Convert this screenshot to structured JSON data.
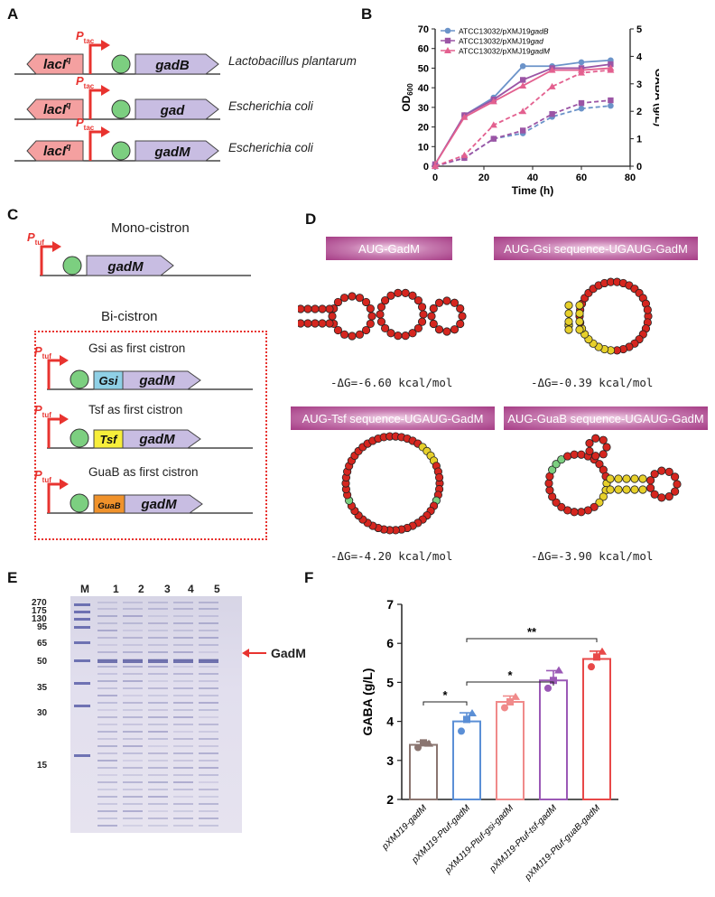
{
  "panels": {
    "A": "A",
    "B": "B",
    "C": "C",
    "D": "D",
    "E": "E",
    "F": "F"
  },
  "panelA": {
    "rows": [
      {
        "promoter": "P",
        "promoter_sub": "tac",
        "repressor": "lacI",
        "repressor_sup": "q",
        "gene": "gadB",
        "species": "Lactobacillus plantarum"
      },
      {
        "promoter": "P",
        "promoter_sub": "tac",
        "repressor": "lacI",
        "repressor_sup": "q",
        "gene": "gad",
        "species": "Escherichia coli"
      },
      {
        "promoter": "P",
        "promoter_sub": "tac",
        "repressor": "lacI",
        "repressor_sup": "q",
        "gene": "gadM",
        "species": "Escherichia coli"
      }
    ]
  },
  "panelC": {
    "mono_title": "Mono-cistron",
    "bi_title": "Bi-cistron",
    "promoter": "P",
    "promoter_sub": "tuf",
    "gene": "gadM",
    "cistrons": [
      {
        "caption": "Gsi as first cistron",
        "label": "Gsi",
        "color": "#8fd0e6"
      },
      {
        "caption": "Tsf as first cistron",
        "label": "Tsf",
        "color": "#f7ee3a"
      },
      {
        "caption": "GuaB as first cistron",
        "label": "GuaB",
        "color": "#f0922b"
      }
    ]
  },
  "panelD": {
    "structures": [
      {
        "title": "AUG-GadM",
        "energy": "-ΔG=-6.60 kcal/mol"
      },
      {
        "title": "AUG-Gsi sequence-UGAUG-GadM",
        "energy": "-ΔG=-0.39 kcal/mol"
      },
      {
        "title": "AUG-Tsf sequence-UGAUG-GadM",
        "energy": "-ΔG=-4.20 kcal/mol"
      },
      {
        "title": "AUG-GuaB sequence-UGAUG-GadM",
        "energy": "-ΔG=-3.90 kcal/mol"
      }
    ]
  },
  "panelE": {
    "lanes": [
      "M",
      "1",
      "2",
      "3",
      "4",
      "5"
    ],
    "markers": [
      "270",
      "175",
      "130",
      "95",
      "65",
      "50",
      "35",
      "30",
      "15"
    ],
    "arrow_label": "GadM"
  },
  "chart_data": [
    {
      "type": "line",
      "panel": "B",
      "xlabel": "Time (h)",
      "ylabel": "OD600",
      "ylabel_main": "OD",
      "ylabel_sub": "600",
      "y2label": "GABA (g/L)",
      "xlim": [
        0,
        80
      ],
      "ylim": [
        0,
        70
      ],
      "y2lim": [
        0,
        5
      ],
      "xticks": [
        "0",
        "20",
        "40",
        "60",
        "80"
      ],
      "yticks": [
        "0",
        "10",
        "20",
        "30",
        "40",
        "50",
        "60",
        "70"
      ],
      "y2ticks": [
        "0",
        "1",
        "2",
        "3",
        "4",
        "5"
      ],
      "legend_position": "top-left",
      "legend": [
        {
          "name_prefix": "ATCC13032/pXMJ19",
          "name_gene": "gadB",
          "color": "#6b93c9",
          "marker": "circle"
        },
        {
          "name_prefix": "ATCC13032/pXMJ19",
          "name_gene": "gad",
          "color": "#9b55a5",
          "marker": "square"
        },
        {
          "name_prefix": "ATCC13032/pXMJ19",
          "name_gene": "gadM",
          "color": "#e3608f",
          "marker": "triangle"
        }
      ],
      "series": [
        {
          "ref": 0,
          "axis": "OD",
          "style": "solid",
          "x": [
            0,
            12,
            24,
            36,
            48,
            60,
            72
          ],
          "y": [
            1,
            26,
            35,
            51,
            51,
            53,
            54
          ]
        },
        {
          "ref": 1,
          "axis": "OD",
          "style": "solid",
          "x": [
            0,
            12,
            24,
            36,
            48,
            60,
            72
          ],
          "y": [
            1,
            26,
            34,
            44,
            50,
            50,
            52
          ]
        },
        {
          "ref": 2,
          "axis": "OD",
          "style": "solid",
          "x": [
            0,
            12,
            24,
            36,
            48,
            60,
            72
          ],
          "y": [
            1,
            25,
            33,
            41,
            49,
            49,
            50
          ]
        },
        {
          "ref": 0,
          "axis": "GABA",
          "style": "dashed",
          "x": [
            0,
            12,
            24,
            36,
            48,
            60,
            72
          ],
          "y": [
            0,
            0.3,
            1.0,
            1.2,
            1.8,
            2.1,
            2.2
          ]
        },
        {
          "ref": 1,
          "axis": "GABA",
          "style": "dashed",
          "x": [
            0,
            12,
            24,
            36,
            48,
            60,
            72
          ],
          "y": [
            0,
            0.3,
            1.0,
            1.3,
            1.9,
            2.3,
            2.4
          ]
        },
        {
          "ref": 2,
          "axis": "GABA",
          "style": "dashed",
          "x": [
            0,
            12,
            24,
            36,
            48,
            60,
            72
          ],
          "y": [
            0,
            0.4,
            1.5,
            2.0,
            2.9,
            3.4,
            3.5
          ]
        }
      ]
    },
    {
      "type": "bar",
      "panel": "F",
      "ylabel": "GABA (g/L)",
      "ylim": [
        2,
        7
      ],
      "yticks": [
        "2",
        "3",
        "4",
        "5",
        "6",
        "7"
      ],
      "categories": [
        "pXMJ19-gadM",
        "pXMJ19-Ptuf-gadM",
        "pXMJ19-Ptuf-gsi-gadM",
        "pXMJ19-Ptuf-tsf-gadM",
        "pXMJ19-Ptuf-guaB-gadM"
      ],
      "values": [
        3.4,
        4.0,
        4.5,
        5.05,
        5.6
      ],
      "errors": [
        0.08,
        0.22,
        0.15,
        0.25,
        0.2
      ],
      "points": [
        [
          3.33,
          3.45,
          3.42
        ],
        [
          3.75,
          4.05,
          4.2
        ],
        [
          4.35,
          4.5,
          4.62
        ],
        [
          4.85,
          5.05,
          5.3
        ],
        [
          5.4,
          5.65,
          5.78
        ]
      ],
      "colors": [
        "#8a7570",
        "#5b8fd6",
        "#f08a8a",
        "#9b59b6",
        "#e84848"
      ],
      "significance": [
        {
          "from": 0,
          "to": 1,
          "label": "*"
        },
        {
          "from": 1,
          "to": 3,
          "label": "*"
        },
        {
          "from": 1,
          "to": 4,
          "label": "**"
        }
      ]
    }
  ]
}
